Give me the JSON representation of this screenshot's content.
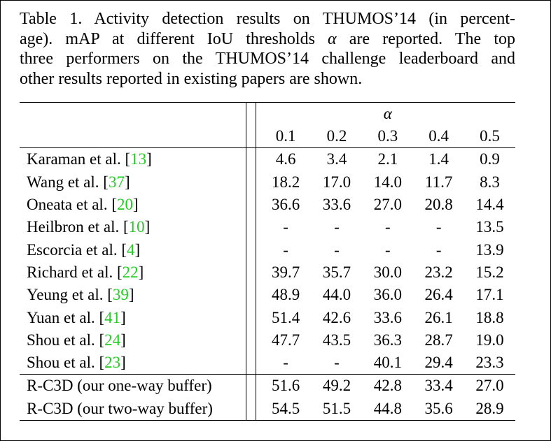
{
  "caption": {
    "line1": "Table 1. Activity detection results on THUMOS’14 (in percent-",
    "line2a": "age).  mAP at different IoU thresholds",
    "alpha": "α",
    "line2b": "are reported.  The top",
    "line3": "three performers on the THUMOS’14 challenge leaderboard and",
    "line4": "other results reported in existing papers are shown."
  },
  "table": {
    "alpha_header": "α",
    "thresholds": [
      "0.1",
      "0.2",
      "0.3",
      "0.4",
      "0.5"
    ],
    "rows": [
      {
        "name": "Karaman et al. [",
        "ref": "13",
        "close": "]",
        "values": [
          "4.6",
          "3.4",
          "2.1",
          "1.4",
          "0.9"
        ]
      },
      {
        "name": "Wang et al. [",
        "ref": "37",
        "close": "]",
        "values": [
          "18.2",
          "17.0",
          "14.0",
          "11.7",
          "8.3"
        ]
      },
      {
        "name": "Oneata et al. [",
        "ref": "20",
        "close": "]",
        "values": [
          "36.6",
          "33.6",
          "27.0",
          "20.8",
          "14.4"
        ]
      },
      {
        "name": "Heilbron et al. [",
        "ref": "10",
        "close": "]",
        "values": [
          "-",
          "-",
          "-",
          "-",
          "13.5"
        ]
      },
      {
        "name": "Escorcia et al. [",
        "ref": "4",
        "close": "]",
        "values": [
          "-",
          "-",
          "-",
          "-",
          "13.9"
        ]
      },
      {
        "name": "Richard et al. [",
        "ref": "22",
        "close": "]",
        "values": [
          "39.7",
          "35.7",
          "30.0",
          "23.2",
          "15.2"
        ]
      },
      {
        "name": "Yeung et al. [",
        "ref": "39",
        "close": "]",
        "values": [
          "48.9",
          "44.0",
          "36.0",
          "26.4",
          "17.1"
        ]
      },
      {
        "name": "Yuan et al. [",
        "ref": "41",
        "close": "]",
        "values": [
          "51.4",
          "42.6",
          "33.6",
          "26.1",
          "18.8"
        ]
      },
      {
        "name": "Shou et al. [",
        "ref": "24",
        "close": "]",
        "values": [
          "47.7",
          "43.5",
          "36.3",
          "28.7",
          "19.0"
        ]
      },
      {
        "name": "Shou et al. [",
        "ref": "23",
        "close": "]",
        "values": [
          "-",
          "-",
          "40.1",
          "29.4",
          "23.3"
        ]
      }
    ],
    "ours": [
      {
        "name": "R-C3D (our one-way buffer)",
        "values": [
          "51.6",
          "49.2",
          "42.8",
          "33.4",
          "27.0"
        ],
        "bold": false
      },
      {
        "name": "R-C3D (our two-way buffer)",
        "values": [
          "54.5",
          "51.5",
          "44.8",
          "35.6",
          "28.9"
        ],
        "bold": true
      }
    ]
  },
  "colors": {
    "ref_link": "#22cc22",
    "text": "#000000"
  }
}
